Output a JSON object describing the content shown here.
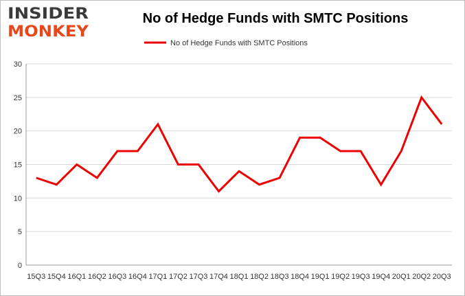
{
  "brand": {
    "line1": "INSIDER",
    "line2": "MONKEY"
  },
  "colors": {
    "series": "#ee0000",
    "grid": "#d9d9d9",
    "axis": "#999999",
    "logo_dark": "#3a3a3a",
    "logo_accent": "#e8471c"
  },
  "chart_data": {
    "type": "line",
    "title": "No of Hedge Funds with SMTC Positions",
    "xlabel": "",
    "ylabel": "",
    "categories": [
      "15Q3",
      "15Q4",
      "16Q1",
      "16Q2",
      "16Q3",
      "16Q4",
      "17Q1",
      "17Q2",
      "17Q3",
      "17Q4",
      "18Q1",
      "18Q2",
      "18Q3",
      "18Q4",
      "19Q1",
      "19Q2",
      "19Q3",
      "19Q4",
      "20Q1",
      "20Q2",
      "20Q3"
    ],
    "series": [
      {
        "name": "No of Hedge Funds with SMTC Positions",
        "color": "#ee0000",
        "values": [
          13,
          12,
          15,
          13,
          17,
          17,
          21,
          15,
          15,
          11,
          14,
          12,
          13,
          19,
          19,
          17,
          17,
          12,
          17,
          25,
          21
        ]
      }
    ],
    "ylim": [
      0,
      30
    ],
    "yticks": [
      0,
      5,
      10,
      15,
      20,
      25,
      30
    ],
    "grid": true,
    "legend": "top-center"
  }
}
